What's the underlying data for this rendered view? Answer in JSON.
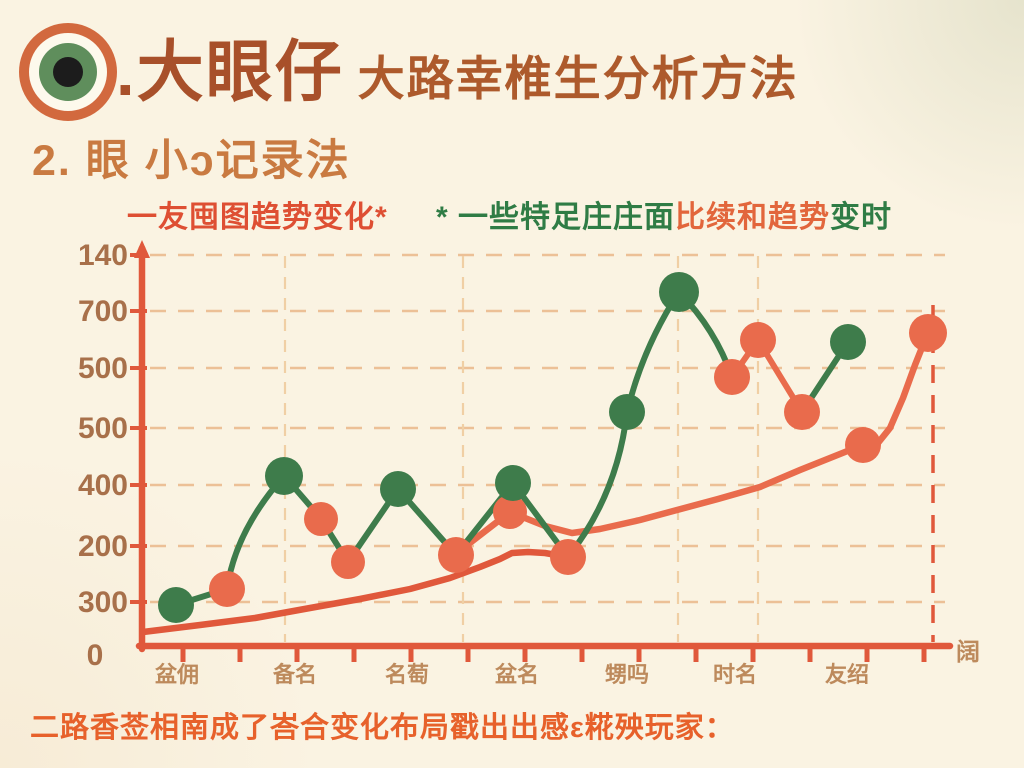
{
  "header": {
    "title_main": ".大眼仔",
    "title_sub": "大路幸椎生分析方法",
    "section_title": "2. 眼 小ɔ记录法"
  },
  "legend": {
    "red_text": "一友囤图趋势变化*",
    "green_prefix": "* 一些特足庄庄面",
    "orange_mid": "比续和趋势",
    "green_suffix": "变时"
  },
  "footer": {
    "note": "二路香莶相南成了峇合变化布局戳出出感ε糀殃玩家："
  },
  "colors": {
    "background": "#faf3e2",
    "axis": "#e0583b",
    "dot_green": "#3e7c4b",
    "dot_orange": "#e96b4c",
    "grid_h": "#ecc096",
    "grid_v": "#f0cfa4",
    "grid_v_strong": "#e0583b",
    "y_label": "#a8704a",
    "x_label": "#bd8a5c",
    "logo_orange": "#d2693e",
    "logo_green": "#5f8e5c",
    "logo_black": "#1c1c1c"
  },
  "chart_data": {
    "type": "line",
    "title": "",
    "grid": "dashed",
    "y_axis": {
      "tick_labels": [
        "140",
        "700",
        "500",
        "500",
        "400",
        "200",
        "300"
      ],
      "tick_ys": [
        255,
        311,
        368,
        428,
        485,
        546,
        602
      ],
      "zero_label": "0",
      "zero_x": 95,
      "zero_y": 655
    },
    "x_axis": {
      "labels": [
        "盆佣",
        "备名",
        "名萄",
        "盆名",
        "甥吗",
        "时名",
        "友绍"
      ],
      "label_xs": [
        177,
        295,
        407,
        517,
        627,
        735,
        847
      ],
      "label_y": 682,
      "end_label": "阔",
      "end_label_x": 968,
      "end_label_y": 660,
      "tick_start_x": 183,
      "tick_step": 57,
      "tick_count": 14
    },
    "v_gridlines": [
      {
        "x": 285,
        "strong": false
      },
      {
        "x": 463,
        "strong": false
      },
      {
        "x": 678,
        "strong": false
      },
      {
        "x": 758,
        "strong": false
      },
      {
        "x": 933,
        "strong": true
      }
    ],
    "series": [
      {
        "name": "pattern-zigzag",
        "points": [
          {
            "x": 176,
            "y": 605,
            "color": "green",
            "value": 72,
            "r": 18
          },
          {
            "x": 227,
            "y": 589,
            "color": "orange",
            "value": 100,
            "r": 18
          },
          {
            "x": 284,
            "y": 476,
            "color": "green",
            "value": 298,
            "r": 19
          },
          {
            "x": 321,
            "y": 519,
            "color": "orange",
            "value": 223,
            "r": 17
          },
          {
            "x": 348,
            "y": 562,
            "color": "orange",
            "value": 147,
            "r": 17
          },
          {
            "x": 398,
            "y": 489,
            "color": "green",
            "value": 275,
            "r": 18
          },
          {
            "x": 456,
            "y": 555,
            "color": "orange",
            "value": 160,
            "r": 18
          },
          {
            "x": 513,
            "y": 483,
            "color": "green",
            "value": 286,
            "r": 18
          },
          {
            "x": 568,
            "y": 557,
            "color": "orange",
            "value": 156,
            "r": 18
          },
          {
            "x": 627,
            "y": 412,
            "color": "green",
            "value": 411,
            "r": 18
          },
          {
            "x": 679,
            "y": 292,
            "color": "green",
            "value": 621,
            "r": 20
          },
          {
            "x": 732,
            "y": 377,
            "color": "orange",
            "value": 472,
            "r": 18
          },
          {
            "x": 758,
            "y": 340,
            "color": "orange",
            "value": 537,
            "r": 18
          },
          {
            "x": 802,
            "y": 412,
            "color": "orange",
            "value": 411,
            "r": 18
          },
          {
            "x": 848,
            "y": 342,
            "color": "green",
            "value": 533,
            "r": 18
          }
        ],
        "segments": [
          {
            "a": 0,
            "b": 1,
            "color": "green"
          },
          {
            "a": 1,
            "b": 2,
            "color": "green",
            "bow": [
              -20,
              -2
            ]
          },
          {
            "a": 2,
            "b": 3,
            "color": "green",
            "bow": [
              6,
              6
            ]
          },
          {
            "a": 3,
            "b": 4,
            "color": "green"
          },
          {
            "a": 4,
            "b": 5,
            "color": "green"
          },
          {
            "a": 5,
            "b": 6,
            "color": "green"
          },
          {
            "a": 6,
            "b": 7,
            "color": "green"
          },
          {
            "a": 7,
            "b": 8,
            "color": "green"
          },
          {
            "a": 8,
            "b": 9,
            "color": "green",
            "bow": [
              20,
              10
            ]
          },
          {
            "a": 9,
            "b": 10,
            "color": "green",
            "bow": [
              -10,
              -5
            ]
          },
          {
            "a": 10,
            "b": 11,
            "color": "green",
            "bow": [
              10,
              -5
            ]
          },
          {
            "a": 11,
            "b": 12,
            "color": "orange"
          },
          {
            "a": 12,
            "b": 13,
            "color": "orange"
          },
          {
            "a": 13,
            "b": 14,
            "color": "green"
          }
        ]
      },
      {
        "name": "trend-upper",
        "color": "orange",
        "path": [
          [
            462,
            549
          ],
          [
            510,
            512
          ],
          [
            545,
            526
          ],
          [
            572,
            533
          ],
          [
            600,
            529
          ],
          [
            640,
            520
          ],
          [
            677,
            510
          ],
          [
            718,
            499
          ],
          [
            760,
            487
          ],
          [
            800,
            470
          ],
          [
            830,
            458
          ],
          [
            855,
            448
          ],
          [
            863,
            446
          ],
          [
            878,
            443
          ],
          [
            890,
            428
          ],
          [
            903,
            398
          ],
          [
            915,
            365
          ],
          [
            925,
            340
          ],
          [
            928,
            334
          ]
        ],
        "dots": [
          {
            "x": 510,
            "y": 512,
            "value": 235,
            "r": 17
          },
          {
            "x": 863,
            "y": 445,
            "value": 353,
            "r": 18
          },
          {
            "x": 928,
            "y": 333,
            "value": 549,
            "r": 19
          }
        ]
      },
      {
        "name": "trend-lower",
        "color": "orange",
        "path": [
          [
            143,
            632
          ],
          [
            200,
            625
          ],
          [
            255,
            618
          ],
          [
            310,
            608
          ],
          [
            360,
            599
          ],
          [
            410,
            589
          ],
          [
            450,
            578
          ],
          [
            480,
            567
          ],
          [
            500,
            559
          ],
          [
            512,
            553
          ],
          [
            528,
            552
          ],
          [
            545,
            553
          ],
          [
            568,
            557
          ]
        ],
        "dots": []
      }
    ]
  }
}
